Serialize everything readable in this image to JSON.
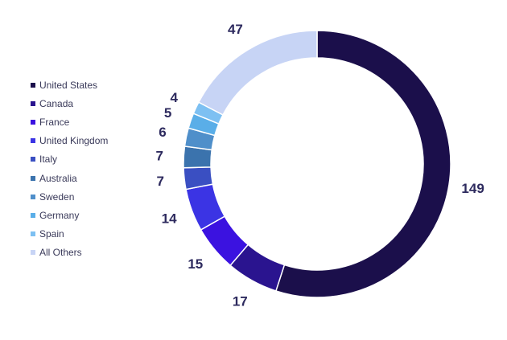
{
  "chart_data": {
    "type": "pie",
    "donut": true,
    "legend_position": "left",
    "categories": [
      "United States",
      "Canada",
      "France",
      "United Kingdom",
      "Italy",
      "Australia",
      "Sweden",
      "Germany",
      "Spain",
      "All Others"
    ],
    "values": [
      149,
      17,
      15,
      14,
      7,
      7,
      6,
      5,
      4,
      47
    ],
    "colors": [
      "#1b0f4b",
      "#2a148f",
      "#3b12e0",
      "#3b34e4",
      "#3a4fc2",
      "#3b73ad",
      "#4f8fca",
      "#5aaee8",
      "#7dc0f2",
      "#c7d4f5"
    ],
    "data_labels": [
      "149",
      "17",
      "15",
      "14",
      "7",
      "7",
      "6",
      "5",
      "4",
      "47"
    ]
  }
}
